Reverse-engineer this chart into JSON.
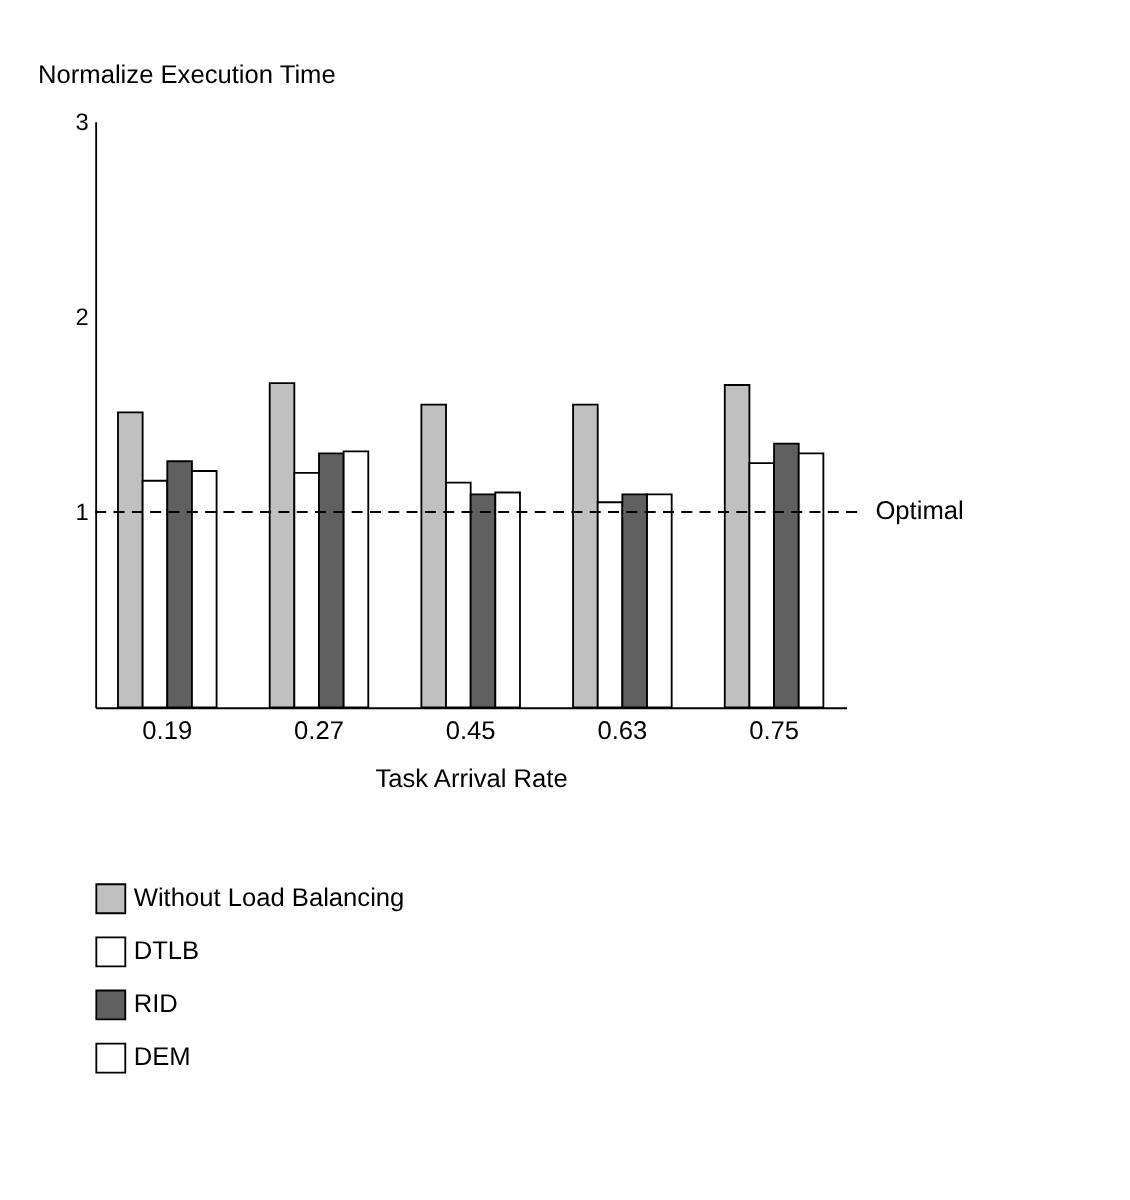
{
  "chart_data": {
    "type": "bar",
    "xlabel": "Task  Arrival Rate",
    "ylabel": "Normalize Execution Time",
    "categories": [
      "0.19",
      "0.27",
      "0.45",
      "0.63",
      "0.75"
    ],
    "series": [
      {
        "name": "Without Load Balancing",
        "color": "#c0c0c0",
        "values": [
          1.51,
          1.66,
          1.55,
          1.55,
          1.65
        ]
      },
      {
        "name": "DTLB",
        "color": "#ffffff",
        "values": [
          1.16,
          1.2,
          1.15,
          1.05,
          1.25
        ]
      },
      {
        "name": "RID",
        "color": "#606060",
        "values": [
          1.26,
          1.3,
          1.09,
          1.09,
          1.35
        ]
      },
      {
        "name": "DEM",
        "color": "#ffffff",
        "values": [
          1.21,
          1.31,
          1.1,
          1.09,
          1.3
        ]
      }
    ],
    "ylim": [
      0,
      3
    ],
    "yticks": [
      1,
      2,
      3
    ],
    "grid": false,
    "legend": "bottom",
    "ref_lines": [
      {
        "axis": "y",
        "value": 1,
        "label": "Optimal",
        "line_style": "dashed",
        "color": "#000000"
      }
    ]
  }
}
